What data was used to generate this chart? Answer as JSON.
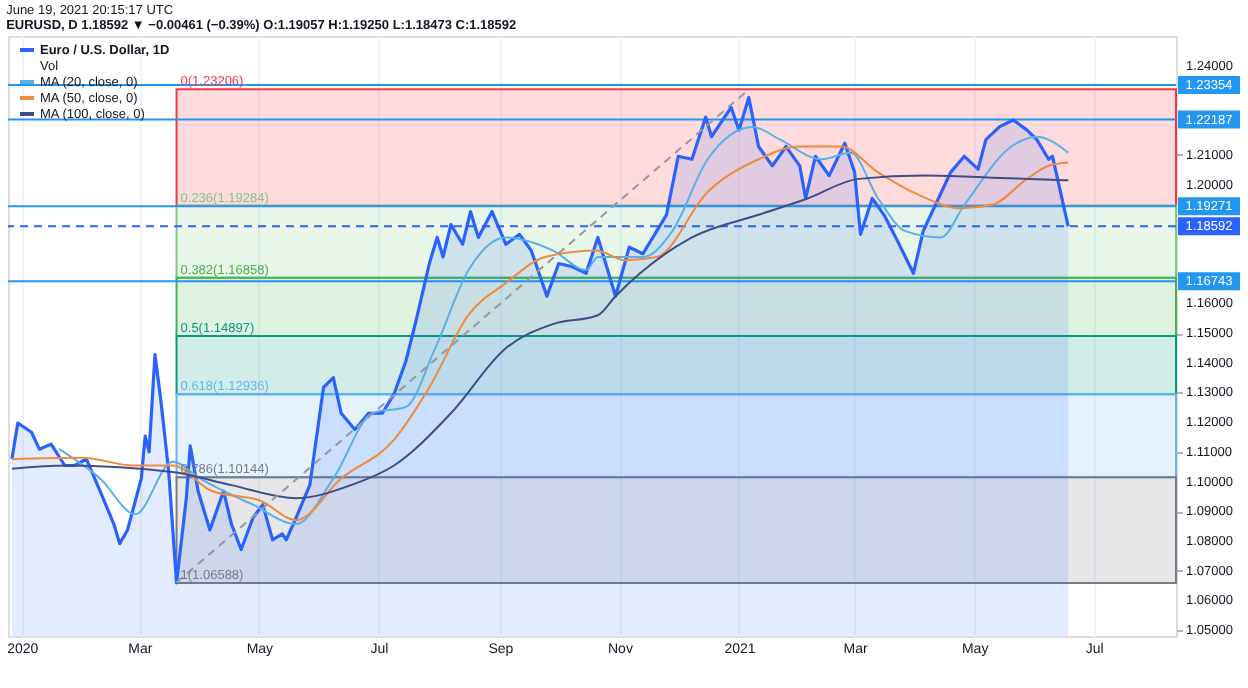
{
  "chart_data": {
    "type": "area",
    "title": "June 19, 2021 20:15:17 UTC",
    "subtitle": "EURUSD, D 1.18592 ▼ −0.00461 (−0.39%) O:1.19057 H:1.19250 L:1.18473 C:1.18592",
    "xlim": [
      "2019-12-25",
      "2021-08-12"
    ],
    "xticks": [
      {
        "value": "2020-01-01",
        "label": "2020"
      },
      {
        "value": "2020-03-01",
        "label": "Mar"
      },
      {
        "value": "2020-05-01",
        "label": "May"
      },
      {
        "value": "2020-07-01",
        "label": "Jul"
      },
      {
        "value": "2020-09-01",
        "label": "Sep"
      },
      {
        "value": "2020-11-01",
        "label": "Nov"
      },
      {
        "value": "2021-01-01",
        "label": "2021"
      },
      {
        "value": "2021-03-01",
        "label": "Mar"
      },
      {
        "value": "2021-05-01",
        "label": "May"
      },
      {
        "value": "2021-07-01",
        "label": "Jul"
      }
    ],
    "ylim": [
      1.048,
      1.25
    ],
    "yticks": [
      {
        "value": 1.05,
        "label": "1.05000"
      },
      {
        "value": 1.06,
        "label": "1.06000"
      },
      {
        "value": 1.07,
        "label": "1.07000"
      },
      {
        "value": 1.08,
        "label": "1.08000"
      },
      {
        "value": 1.09,
        "label": "1.09000"
      },
      {
        "value": 1.1,
        "label": "1.10000"
      },
      {
        "value": 1.11,
        "label": "1.11000"
      },
      {
        "value": 1.12,
        "label": "1.12000"
      },
      {
        "value": 1.13,
        "label": "1.13000"
      },
      {
        "value": 1.14,
        "label": "1.14000"
      },
      {
        "value": 1.15,
        "label": "1.15000"
      },
      {
        "value": 1.16,
        "label": "1.16000"
      },
      {
        "value": 1.17,
        "label": null
      },
      {
        "value": 1.2,
        "label": "1.20000"
      },
      {
        "value": 1.21,
        "label": "1.21000"
      },
      {
        "value": 1.24,
        "label": "1.24000"
      }
    ],
    "grid": "x",
    "legend": "top left",
    "series": [
      {
        "name": "Euro / U.S. Dollar, 1D",
        "color": "#2962ff",
        "x": [
          "2019-12-27",
          "2019-12-30",
          "2020-01-06",
          "2020-01-10",
          "2020-01-16",
          "2020-01-23",
          "2020-01-28",
          "2020-02-03",
          "2020-02-10",
          "2020-02-17",
          "2020-02-20",
          "2020-02-24",
          "2020-03-02",
          "2020-03-04",
          "2020-03-06",
          "2020-03-09",
          "2020-03-12",
          "2020-03-16",
          "2020-03-20",
          "2020-03-25",
          "2020-03-27",
          "2020-03-31",
          "2020-04-06",
          "2020-04-13",
          "2020-04-17",
          "2020-04-22",
          "2020-04-28",
          "2020-05-03",
          "2020-05-08",
          "2020-05-13",
          "2020-05-15",
          "2020-05-20",
          "2020-05-27",
          "2020-06-03",
          "2020-06-08",
          "2020-06-12",
          "2020-06-19",
          "2020-06-26",
          "2020-07-03",
          "2020-07-09",
          "2020-07-15",
          "2020-07-20",
          "2020-07-27",
          "2020-07-31",
          "2020-08-03",
          "2020-08-07",
          "2020-08-13",
          "2020-08-17",
          "2020-08-21",
          "2020-08-28",
          "2020-09-04",
          "2020-09-11",
          "2020-09-17",
          "2020-09-25",
          "2020-10-01",
          "2020-10-08",
          "2020-10-15",
          "2020-10-21",
          "2020-10-30",
          "2020-11-06",
          "2020-11-13",
          "2020-11-20",
          "2020-11-25",
          "2020-12-01",
          "2020-12-08",
          "2020-12-15",
          "2020-12-18",
          "2020-12-28",
          "2021-01-01",
          "2021-01-06",
          "2021-01-11",
          "2021-01-18",
          "2021-01-25",
          "2021-02-01",
          "2021-02-04",
          "2021-02-09",
          "2021-02-16",
          "2021-02-24",
          "2021-03-01",
          "2021-03-04",
          "2021-03-10",
          "2021-03-16",
          "2021-03-22",
          "2021-03-31",
          "2021-04-05",
          "2021-04-12",
          "2021-04-19",
          "2021-04-26",
          "2021-05-03",
          "2021-05-07",
          "2021-05-14",
          "2021-05-21",
          "2021-05-28",
          "2021-06-02",
          "2021-06-08",
          "2021-06-10",
          "2021-06-18"
        ],
        "values": [
          1.1076,
          1.1197,
          1.1166,
          1.1109,
          1.1126,
          1.1054,
          1.1054,
          1.1076,
          1.0968,
          1.0857,
          1.0791,
          1.0837,
          1.101,
          1.1153,
          1.11,
          1.1427,
          1.1273,
          1.1034,
          1.0659,
          1.0944,
          1.112,
          1.0968,
          1.0837,
          1.0968,
          1.0857,
          1.0771,
          1.0878,
          1.0922,
          1.0804,
          1.0824,
          1.0804,
          1.0878,
          1.0988,
          1.1317,
          1.135,
          1.123,
          1.1175,
          1.123,
          1.123,
          1.1295,
          1.1405,
          1.1536,
          1.1734,
          1.1822,
          1.1756,
          1.1865,
          1.1799,
          1.1909,
          1.1822,
          1.1909,
          1.1799,
          1.1832,
          1.1778,
          1.1624,
          1.1734,
          1.1723,
          1.1701,
          1.1822,
          1.1624,
          1.1789,
          1.1767,
          1.1843,
          1.1898,
          1.2095,
          1.2085,
          1.2227,
          1.2161,
          1.226,
          1.2183,
          1.2293,
          1.2128,
          1.2063,
          1.2128,
          1.2063,
          1.1953,
          1.2095,
          1.203,
          1.2139,
          1.2041,
          1.1832,
          1.1953,
          1.1898,
          1.1822,
          1.1701,
          1.1843,
          1.1942,
          1.2041,
          1.2095,
          1.2052,
          1.2151,
          1.2195,
          1.2217,
          1.2183,
          1.2151,
          1.2085,
          1.2095,
          1.1859
        ]
      },
      {
        "name": "MA (20, close, 0)",
        "type": "line",
        "color": "#5ab0e8",
        "x": [
          "2020-01-20",
          "2020-02-10",
          "2020-02-28",
          "2020-03-18",
          "2020-04-01",
          "2020-04-28",
          "2020-05-20",
          "2020-06-08",
          "2020-06-28",
          "2020-07-15",
          "2020-07-30",
          "2020-08-16",
          "2020-09-04",
          "2020-09-28",
          "2020-10-15",
          "2020-10-21",
          "2020-11-13",
          "2020-11-28",
          "2020-12-16",
          "2021-01-08",
          "2021-01-22",
          "2021-02-12",
          "2021-02-27",
          "2021-03-13",
          "2021-03-27",
          "2021-04-14",
          "2021-04-26",
          "2021-05-20",
          "2021-06-02",
          "2021-06-18"
        ],
        "values": [
          1.111,
          1.101,
          1.089,
          1.1067,
          1.101,
          1.0922,
          1.0857,
          1.101,
          1.123,
          1.1251,
          1.1449,
          1.1712,
          1.1822,
          1.1778,
          1.1712,
          1.1756,
          1.1756,
          1.1843,
          1.2085,
          1.2194,
          1.2151,
          1.2085,
          1.2107,
          1.1953,
          1.1843,
          1.1822,
          1.1931,
          1.2128,
          1.2161,
          1.2107
        ]
      },
      {
        "name": "MA (50, close, 0)",
        "type": "line",
        "color": "#f08a3c",
        "x": [
          "2019-12-27",
          "2020-02-01",
          "2020-02-27",
          "2020-03-18",
          "2020-04-07",
          "2020-05-02",
          "2020-05-20",
          "2020-06-12",
          "2020-07-09",
          "2020-07-27",
          "2020-08-16",
          "2020-09-04",
          "2020-09-24",
          "2020-10-20",
          "2020-11-04",
          "2020-11-20",
          "2020-12-16",
          "2021-01-11",
          "2021-02-01",
          "2021-02-22",
          "2021-03-13",
          "2021-04-03",
          "2021-04-24",
          "2021-05-10",
          "2021-05-28",
          "2021-06-08",
          "2021-06-18"
        ],
        "values": [
          1.1076,
          1.108,
          1.1054,
          1.1054,
          1.0968,
          1.0935,
          1.087,
          1.101,
          1.1141,
          1.1317,
          1.1561,
          1.1668,
          1.1756,
          1.1778,
          1.1745,
          1.1756,
          1.1975,
          1.2085,
          1.2128,
          1.2128,
          1.2041,
          1.1964,
          1.192,
          1.1931,
          1.2019,
          1.2063,
          1.2074
        ]
      },
      {
        "name": "MA (100, close, 0)",
        "type": "line",
        "color": "#3f4d86",
        "x": [
          "2019-12-27",
          "2020-01-24",
          "2020-03-18",
          "2020-04-17",
          "2020-05-20",
          "2020-06-17",
          "2020-07-09",
          "2020-08-07",
          "2020-09-04",
          "2020-09-28",
          "2020-10-21",
          "2020-10-30",
          "2020-12-08",
          "2021-01-11",
          "2021-02-05",
          "2021-03-03",
          "2021-04-06",
          "2021-05-10",
          "2021-06-18"
        ],
        "values": [
          1.1043,
          1.1054,
          1.1032,
          1.0988,
          1.0944,
          1.0988,
          1.1054,
          1.123,
          1.1449,
          1.153,
          1.156,
          1.1624,
          1.1822,
          1.1898,
          1.1953,
          1.2019,
          1.203,
          1.2023,
          1.2014
        ]
      },
      {
        "type": "line",
        "color": "#9598a1",
        "line_style": "dashed",
        "x": [
          "2020-03-20",
          "2021-01-06"
        ],
        "values": [
          1.066,
          1.232
        ]
      }
    ],
    "bands": [
      {
        "axis": "y",
        "from": 1.23206,
        "to": 1.19284,
        "color": "#f23645"
      },
      {
        "axis": "y",
        "from": 1.19284,
        "to": 1.16858,
        "color": "#81c784"
      },
      {
        "axis": "y",
        "from": 1.16858,
        "to": 1.14897,
        "color": "#4caf50"
      },
      {
        "axis": "y",
        "from": 1.14897,
        "to": 1.12936,
        "color": "#089981"
      },
      {
        "axis": "y",
        "from": 1.12936,
        "to": 1.10144,
        "color": "#64b5f6"
      },
      {
        "axis": "y",
        "from": 1.10144,
        "to": 1.06588,
        "color": "#787b86"
      }
    ],
    "ref_lines": [
      {
        "axis": "y",
        "value": 1.23354,
        "label": "1.23354",
        "color": "#2196f3"
      },
      {
        "axis": "y",
        "value": 1.22187,
        "label": "1.22187",
        "color": "#2196f3"
      },
      {
        "axis": "y",
        "value": 1.19271,
        "label": "1.19271",
        "color": "#2196f3"
      },
      {
        "axis": "y",
        "value": 1.18592,
        "label": "1.18592",
        "color": "#2962ff",
        "line_style": "dashed"
      },
      {
        "axis": "y",
        "value": 1.16743,
        "label": "1.16743",
        "color": "#2196f3"
      }
    ],
    "annotations": [
      "Vol",
      {
        "text": "0(1.23206)",
        "x": "2020-03-20",
        "y": 1.23206
      },
      {
        "text": "0.236(1.19284)",
        "x": "2020-03-20",
        "y": 1.19284
      },
      {
        "text": "0.382(1.16858)",
        "x": "2020-03-20",
        "y": 1.16858
      },
      {
        "text": "0.5(1.14897)",
        "x": "2020-03-20",
        "y": 1.14897
      },
      {
        "text": "0.618(1.12936)",
        "x": "2020-03-20",
        "y": 1.12936
      },
      {
        "text": "0.786(1.10144)",
        "x": "2020-03-20",
        "y": 1.10144
      },
      {
        "text": "1(1.06588)",
        "x": "2020-03-20",
        "y": 1.06588
      }
    ]
  }
}
